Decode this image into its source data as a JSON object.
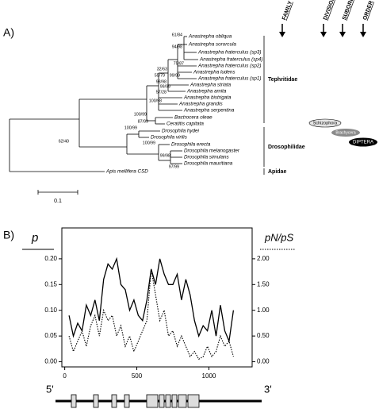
{
  "panel_a": {
    "label": "A)",
    "taxa": [
      "Anastrepha obliqua",
      "Anastrepha sororcula",
      "Anastrepha fraterculus (sp3)",
      "Anastrepha fraterculus (sp4)",
      "Anastrepha fraterculus (sp2)",
      "Anastrepha ludens",
      "Anastrepha fraterculus (sp1)",
      "Anastrepha striata",
      "Anastrepha amita",
      "Anastrepha bistrigata",
      "Anastrepha grandis",
      "Anastrepha serpentina",
      "Bactrocera oleae",
      "Ceratitis capitata",
      "Drosophila hydei",
      "Drosophila virilis",
      "Drosophila erecta",
      "Drosophila melanogaster",
      "Drosophila simulans",
      "Drosophila mauritiana",
      "Apis mellifera CSD"
    ],
    "bootstrap": [
      "61/84",
      "94/98",
      "75/87",
      "32/63",
      "55/79",
      "99/99",
      "98/98",
      "99/99",
      "57/28",
      "100/98",
      "100/99",
      "87/99",
      "100/99",
      "62/40",
      "100/99",
      "99/98",
      "97/99"
    ],
    "families": [
      "Tephritidae",
      "Drosophilidae",
      "Apidae"
    ],
    "headers": [
      "FAMILY",
      "DIVISION",
      "SUBORDER",
      "ORDER"
    ],
    "ranks": [
      "Schizophora",
      "Brachycera",
      "DIPTERA"
    ],
    "scale": "0.1"
  },
  "chart_data": {
    "type": "line",
    "label": "B)",
    "ylabel": "p",
    "y2label": "pN/pS",
    "x": [
      30,
      60,
      90,
      120,
      150,
      180,
      210,
      240,
      270,
      300,
      330,
      360,
      390,
      420,
      450,
      480,
      510,
      540,
      570,
      600,
      630,
      660,
      690,
      720,
      750,
      780,
      810,
      840,
      870,
      900,
      930,
      960,
      990,
      1020,
      1050,
      1080,
      1110,
      1140,
      1170
    ],
    "series": [
      {
        "name": "p",
        "color": "#000000",
        "axis": "y",
        "values": [
          0.09,
          0.05,
          0.075,
          0.06,
          0.11,
          0.09,
          0.12,
          0.08,
          0.16,
          0.19,
          0.18,
          0.2,
          0.15,
          0.14,
          0.1,
          0.12,
          0.09,
          0.08,
          0.12,
          0.18,
          0.15,
          0.2,
          0.17,
          0.15,
          0.15,
          0.17,
          0.12,
          0.16,
          0.13,
          0.08,
          0.05,
          0.07,
          0.06,
          0.1,
          0.05,
          0.11,
          0.06,
          0.04,
          0.1
        ]
      },
      {
        "name": "pN/pS",
        "color": "#000000",
        "axis": "y2",
        "values": [
          0.5,
          0.2,
          0.4,
          0.6,
          0.3,
          0.7,
          0.9,
          0.5,
          1.0,
          0.8,
          0.9,
          0.5,
          0.7,
          0.3,
          0.5,
          0.2,
          0.4,
          0.6,
          0.8,
          1.8,
          1.3,
          0.8,
          1.0,
          0.5,
          0.6,
          0.3,
          0.5,
          0.3,
          0.1,
          0.2,
          0.05,
          0.1,
          0.3,
          0.1,
          0.2,
          0.5,
          0.3,
          0.4,
          0.1
        ]
      }
    ],
    "xlim": [
      -20,
      1300
    ],
    "xticks": [
      0,
      500,
      1000
    ],
    "ylim": [
      -0.01,
      0.26
    ],
    "yticks": [
      {
        "value": 0,
        "label": "0.00"
      },
      0.05,
      {
        "value": 0.1,
        "label": "0.10"
      },
      0.15,
      {
        "value": 0.2,
        "label": "0.20"
      }
    ],
    "y2lim": [
      -0.1,
      2.6
    ],
    "y2ticks": [
      {
        "value": 0,
        "label": "0.00"
      },
      {
        "value": 0.5,
        "label": "0.50"
      },
      {
        "value": 1,
        "label": "1.00"
      },
      {
        "value": 1.5,
        "label": "1.50"
      },
      {
        "value": 2,
        "label": "2.00"
      }
    ]
  }
}
